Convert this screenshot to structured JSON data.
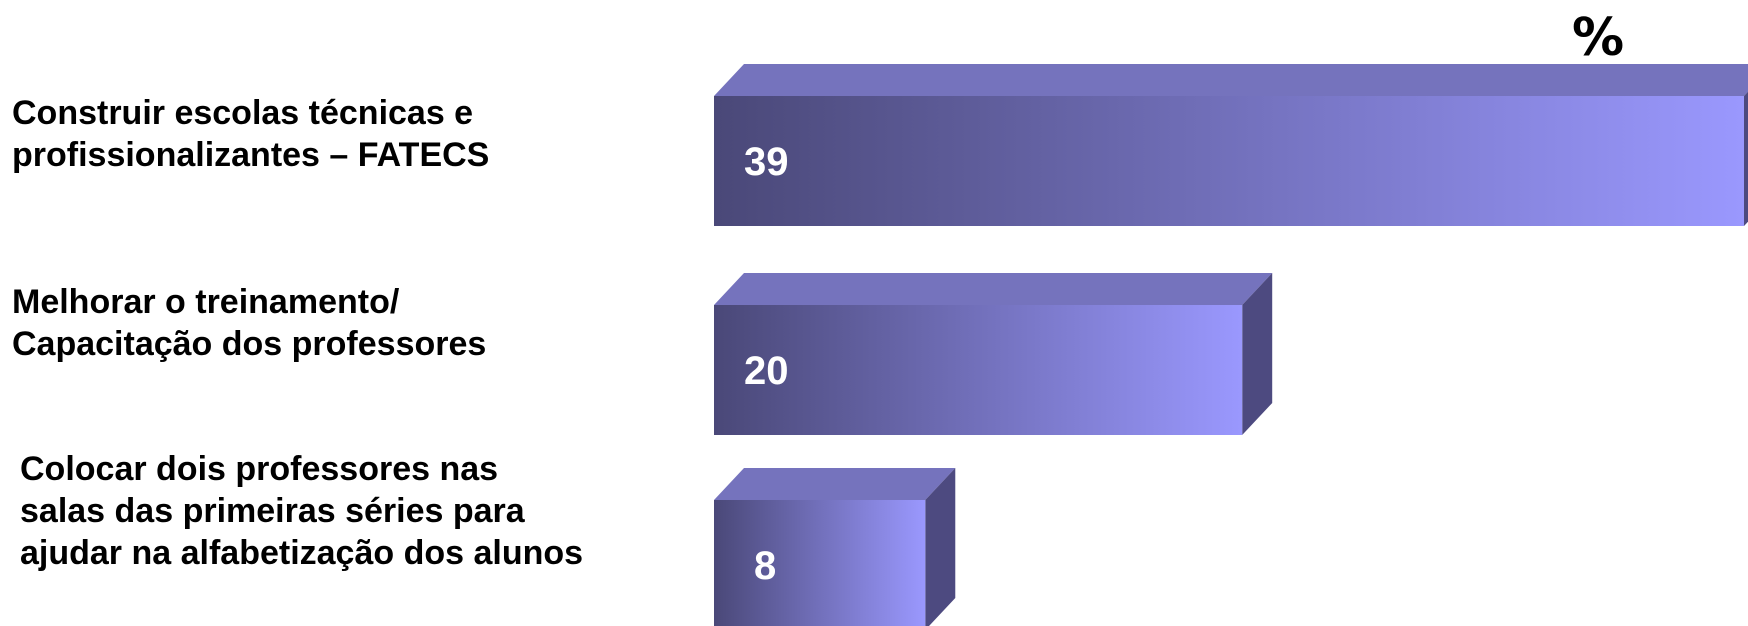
{
  "chart_data": {
    "type": "bar",
    "orientation": "horizontal",
    "style": "3d",
    "unit_label": "%",
    "categories": [
      "Construir escolas técnicas e\nprofissionalizantes – FATECS",
      "Melhorar o treinamento/\nCapacitação dos professores",
      "Colocar dois professores nas\nsalas das primeiras séries para\najudar na alfabetização dos alunos"
    ],
    "values": [
      39,
      20,
      8
    ],
    "value_labels": [
      "39",
      "20",
      "8"
    ],
    "xlim": [
      0,
      39
    ],
    "grid": false,
    "colors": {
      "front_dark": "#4a4878",
      "front_light": "#9a98fe",
      "top": "#7573bd",
      "side": "#4d4a80"
    }
  }
}
